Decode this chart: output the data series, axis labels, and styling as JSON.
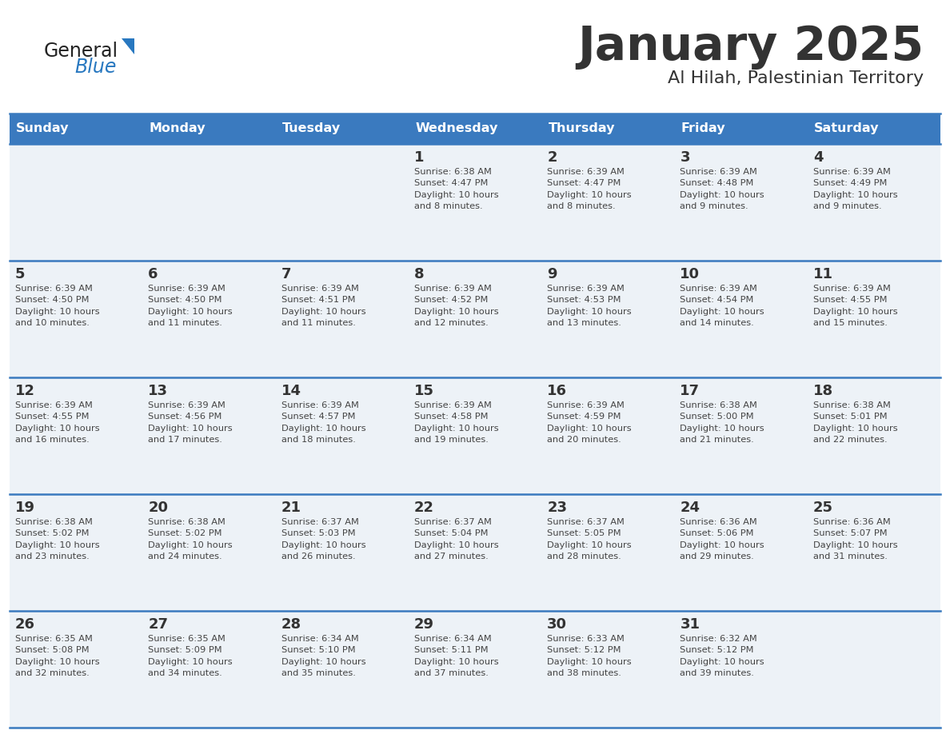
{
  "title": "January 2025",
  "subtitle": "Al Hilah, Palestinian Territory",
  "header_color": "#3a7abf",
  "header_text_color": "#ffffff",
  "cell_bg_color": "#edf2f7",
  "day_text_color": "#333333",
  "info_text_color": "#444444",
  "line_color": "#3a7abf",
  "days_of_week": [
    "Sunday",
    "Monday",
    "Tuesday",
    "Wednesday",
    "Thursday",
    "Friday",
    "Saturday"
  ],
  "logo_general_color": "#222222",
  "logo_blue_color": "#2878c0",
  "calendar": [
    [
      {
        "day": "",
        "info": ""
      },
      {
        "day": "",
        "info": ""
      },
      {
        "day": "",
        "info": ""
      },
      {
        "day": "1",
        "info": "Sunrise: 6:38 AM\nSunset: 4:47 PM\nDaylight: 10 hours\nand 8 minutes."
      },
      {
        "day": "2",
        "info": "Sunrise: 6:39 AM\nSunset: 4:47 PM\nDaylight: 10 hours\nand 8 minutes."
      },
      {
        "day": "3",
        "info": "Sunrise: 6:39 AM\nSunset: 4:48 PM\nDaylight: 10 hours\nand 9 minutes."
      },
      {
        "day": "4",
        "info": "Sunrise: 6:39 AM\nSunset: 4:49 PM\nDaylight: 10 hours\nand 9 minutes."
      }
    ],
    [
      {
        "day": "5",
        "info": "Sunrise: 6:39 AM\nSunset: 4:50 PM\nDaylight: 10 hours\nand 10 minutes."
      },
      {
        "day": "6",
        "info": "Sunrise: 6:39 AM\nSunset: 4:50 PM\nDaylight: 10 hours\nand 11 minutes."
      },
      {
        "day": "7",
        "info": "Sunrise: 6:39 AM\nSunset: 4:51 PM\nDaylight: 10 hours\nand 11 minutes."
      },
      {
        "day": "8",
        "info": "Sunrise: 6:39 AM\nSunset: 4:52 PM\nDaylight: 10 hours\nand 12 minutes."
      },
      {
        "day": "9",
        "info": "Sunrise: 6:39 AM\nSunset: 4:53 PM\nDaylight: 10 hours\nand 13 minutes."
      },
      {
        "day": "10",
        "info": "Sunrise: 6:39 AM\nSunset: 4:54 PM\nDaylight: 10 hours\nand 14 minutes."
      },
      {
        "day": "11",
        "info": "Sunrise: 6:39 AM\nSunset: 4:55 PM\nDaylight: 10 hours\nand 15 minutes."
      }
    ],
    [
      {
        "day": "12",
        "info": "Sunrise: 6:39 AM\nSunset: 4:55 PM\nDaylight: 10 hours\nand 16 minutes."
      },
      {
        "day": "13",
        "info": "Sunrise: 6:39 AM\nSunset: 4:56 PM\nDaylight: 10 hours\nand 17 minutes."
      },
      {
        "day": "14",
        "info": "Sunrise: 6:39 AM\nSunset: 4:57 PM\nDaylight: 10 hours\nand 18 minutes."
      },
      {
        "day": "15",
        "info": "Sunrise: 6:39 AM\nSunset: 4:58 PM\nDaylight: 10 hours\nand 19 minutes."
      },
      {
        "day": "16",
        "info": "Sunrise: 6:39 AM\nSunset: 4:59 PM\nDaylight: 10 hours\nand 20 minutes."
      },
      {
        "day": "17",
        "info": "Sunrise: 6:38 AM\nSunset: 5:00 PM\nDaylight: 10 hours\nand 21 minutes."
      },
      {
        "day": "18",
        "info": "Sunrise: 6:38 AM\nSunset: 5:01 PM\nDaylight: 10 hours\nand 22 minutes."
      }
    ],
    [
      {
        "day": "19",
        "info": "Sunrise: 6:38 AM\nSunset: 5:02 PM\nDaylight: 10 hours\nand 23 minutes."
      },
      {
        "day": "20",
        "info": "Sunrise: 6:38 AM\nSunset: 5:02 PM\nDaylight: 10 hours\nand 24 minutes."
      },
      {
        "day": "21",
        "info": "Sunrise: 6:37 AM\nSunset: 5:03 PM\nDaylight: 10 hours\nand 26 minutes."
      },
      {
        "day": "22",
        "info": "Sunrise: 6:37 AM\nSunset: 5:04 PM\nDaylight: 10 hours\nand 27 minutes."
      },
      {
        "day": "23",
        "info": "Sunrise: 6:37 AM\nSunset: 5:05 PM\nDaylight: 10 hours\nand 28 minutes."
      },
      {
        "day": "24",
        "info": "Sunrise: 6:36 AM\nSunset: 5:06 PM\nDaylight: 10 hours\nand 29 minutes."
      },
      {
        "day": "25",
        "info": "Sunrise: 6:36 AM\nSunset: 5:07 PM\nDaylight: 10 hours\nand 31 minutes."
      }
    ],
    [
      {
        "day": "26",
        "info": "Sunrise: 6:35 AM\nSunset: 5:08 PM\nDaylight: 10 hours\nand 32 minutes."
      },
      {
        "day": "27",
        "info": "Sunrise: 6:35 AM\nSunset: 5:09 PM\nDaylight: 10 hours\nand 34 minutes."
      },
      {
        "day": "28",
        "info": "Sunrise: 6:34 AM\nSunset: 5:10 PM\nDaylight: 10 hours\nand 35 minutes."
      },
      {
        "day": "29",
        "info": "Sunrise: 6:34 AM\nSunset: 5:11 PM\nDaylight: 10 hours\nand 37 minutes."
      },
      {
        "day": "30",
        "info": "Sunrise: 6:33 AM\nSunset: 5:12 PM\nDaylight: 10 hours\nand 38 minutes."
      },
      {
        "day": "31",
        "info": "Sunrise: 6:32 AM\nSunset: 5:12 PM\nDaylight: 10 hours\nand 39 minutes."
      },
      {
        "day": "",
        "info": ""
      }
    ]
  ]
}
